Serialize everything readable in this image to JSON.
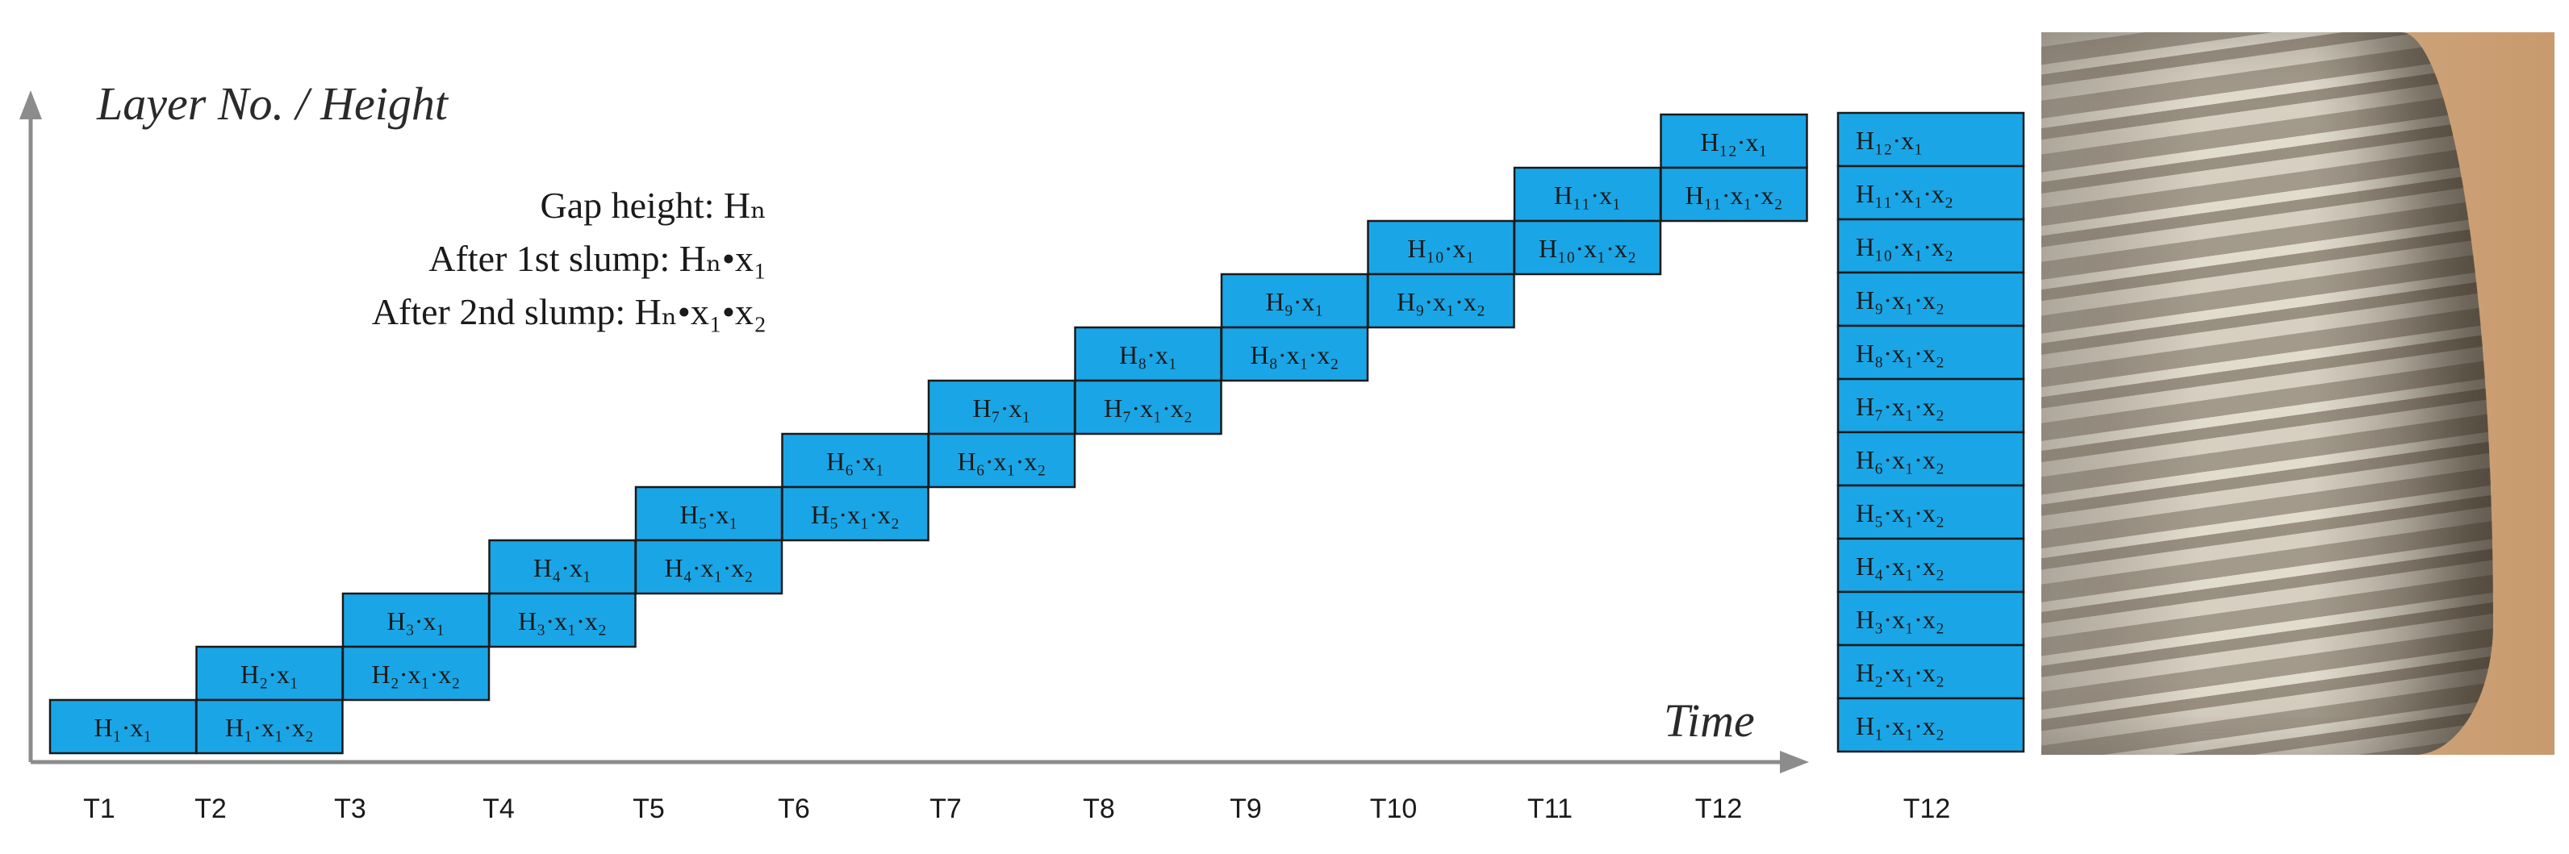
{
  "axis": {
    "y_title": "Layer No. / Height",
    "x_title": "Time"
  },
  "legend": {
    "line1": "Gap height: Hₙ",
    "line2": "After 1st slump: Hₙ•x₁",
    "line3": "After 2nd slump: Hₙ•x₁•x₂"
  },
  "time_labels": [
    "T1",
    "T2",
    "T3",
    "T4",
    "T5",
    "T6",
    "T7",
    "T8",
    "T9",
    "T10",
    "T11",
    "T12"
  ],
  "final_stack_label": "T12",
  "staircase": [
    {
      "top": "H₁·x₁",
      "bottom": ""
    },
    {
      "top": "H₂·x₁",
      "bottom": "H₁·x₁·x₂"
    },
    {
      "top": "H₃·x₁",
      "bottom": "H₂·x₁·x₂"
    },
    {
      "top": "H₄·x₁",
      "bottom": "H₃·x₁·x₂"
    },
    {
      "top": "H₅·x₁",
      "bottom": "H₄·x₁·x₂"
    },
    {
      "top": "H₆·x₁",
      "bottom": "H₅·x₁·x₂"
    },
    {
      "top": "H₇·x₁",
      "bottom": "H₆·x₁·x₂"
    },
    {
      "top": "H₈·x₁",
      "bottom": "H₇·x₁·x₂"
    },
    {
      "top": "H₉·x₁",
      "bottom": "H₈·x₁·x₂"
    },
    {
      "top": "H₁₀·x₁",
      "bottom": "H₉·x₁·x₂"
    },
    {
      "top": "H₁₁·x₁",
      "bottom": "H₁₀·x₁·x₂"
    },
    {
      "top": "H₁₂·x₁",
      "bottom": "H₁₁·x₁·x₂"
    }
  ],
  "final_stack": [
    "H₁₂·x₁",
    "H₁₁·x₁·x₂",
    "H₁₀·x₁·x₂",
    "H₉·x₁·x₂",
    "H₈·x₁·x₂",
    "H₇·x₁·x₂",
    "H₆·x₁·x₂",
    "H₅·x₁·x₂",
    "H₄·x₁·x₂",
    "H₃·x₁·x₂",
    "H₂·x₁·x₂",
    "H₁·x₁·x₂"
  ],
  "colors": {
    "block_fill": "#1aa6e6",
    "block_stroke": "#1a1a1a",
    "axis": "#8c8c8c",
    "text": "#1a1a1a"
  }
}
